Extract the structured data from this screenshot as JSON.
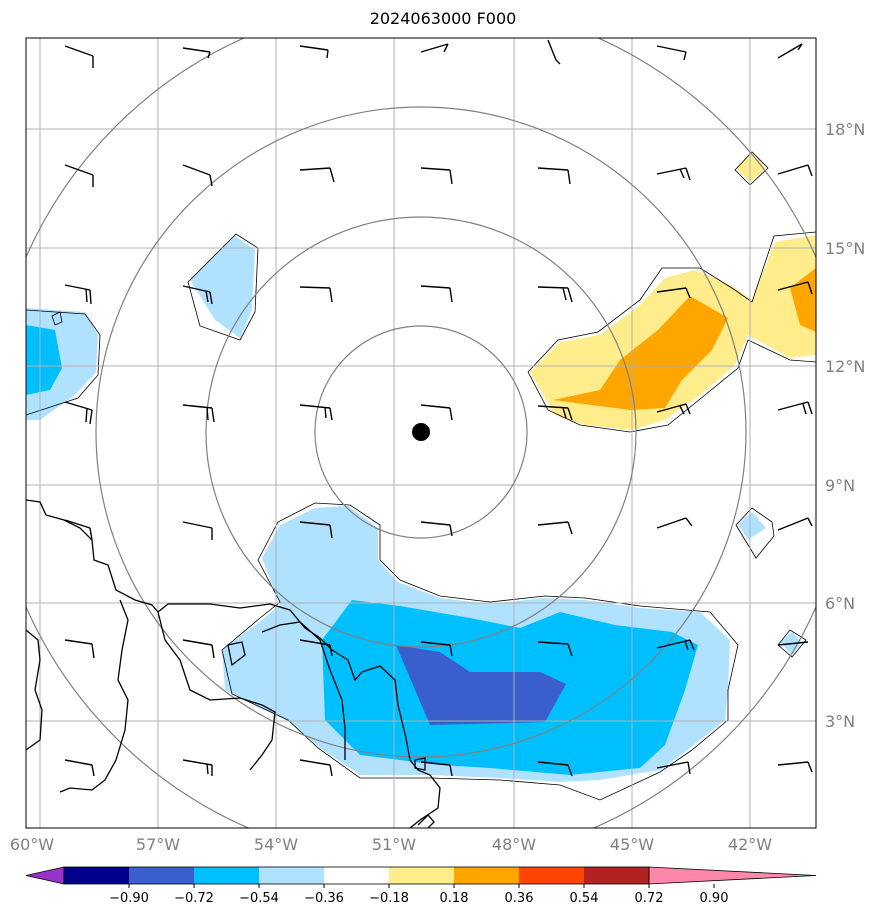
{
  "title": "2024063000 F000",
  "lon_labels": [
    "60°W",
    "57°W",
    "54°W",
    "51°W",
    "48°W",
    "45°W",
    "42°W"
  ],
  "lat_labels": [
    "18°N",
    "15°N",
    "12°N",
    "9°N",
    "6°N",
    "3°N"
  ],
  "center_marker": {
    "lat": 10.3,
    "lon": -50.3
  },
  "colorbar": {
    "ticks": [
      "−0.90",
      "−0.72",
      "−0.54",
      "−0.36",
      "−0.18",
      "0.18",
      "0.36",
      "0.54",
      "0.72",
      "0.90"
    ],
    "colors": [
      "#9933cc",
      "#00008b",
      "#3a5fcd",
      "#00bfff",
      "#b0e2ff",
      "#ffffff",
      "#ffec8b",
      "#ffa500",
      "#ff4500",
      "#b22222",
      "#ff88aa"
    ]
  },
  "colors": {
    "grid": "#b0b0b0",
    "rings": "#808080",
    "coast": "#000000",
    "fill_lightblue": "#b0e2ff",
    "fill_blue": "#00bfff",
    "fill_royal": "#3a5fcd",
    "fill_yellow": "#ffec8b",
    "fill_orange": "#ffa500"
  }
}
